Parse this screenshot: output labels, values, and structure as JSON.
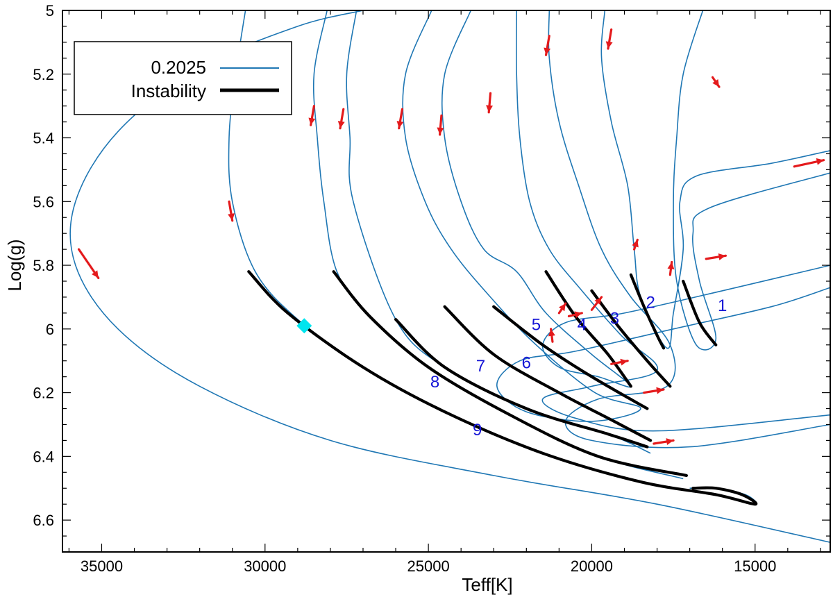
{
  "chart_data": {
    "type": "line",
    "title": "",
    "xlabel": "Teff[K]",
    "ylabel": "Log(g)",
    "xlim": [
      36200,
      12700
    ],
    "ylim": [
      5.0,
      6.7
    ],
    "x_inverted": true,
    "y_inverted": true,
    "x_ticks": [
      35000,
      30000,
      25000,
      20000,
      15000
    ],
    "x_tick_labels": [
      "35000",
      "30000",
      "25000",
      "20000",
      "15000"
    ],
    "y_ticks": [
      5.0,
      5.2,
      5.4,
      5.6,
      5.8,
      6.0,
      6.2,
      6.4,
      6.6
    ],
    "y_tick_labels": [
      "5",
      "5.2",
      "5.4",
      "5.6",
      "5.8",
      "6",
      "6.2",
      "6.4",
      "6.6"
    ],
    "legend": {
      "position": "top-left",
      "entries": [
        {
          "label": "0.2025",
          "style": "thin",
          "color": "#1f77b4"
        },
        {
          "label": "Instability",
          "style": "thick",
          "color": "#000000"
        }
      ]
    },
    "colors": {
      "track": "#1f77b4",
      "instability": "#000000",
      "arrow": "#e41a1c",
      "label": "#1515d6",
      "marker": "#00e5ee"
    },
    "tracks": [
      {
        "name": "outer",
        "points": [
          [
            27000,
            5.0
          ],
          [
            29000,
            5.05
          ],
          [
            32000,
            5.18
          ],
          [
            34500,
            5.38
          ],
          [
            35800,
            5.6
          ],
          [
            35800,
            5.8
          ],
          [
            34500,
            6.0
          ],
          [
            32000,
            6.18
          ],
          [
            28000,
            6.35
          ],
          [
            23000,
            6.46
          ],
          [
            18000,
            6.55
          ],
          [
            12700,
            6.67
          ]
        ]
      },
      {
        "name": "t9",
        "points": [
          [
            30600,
            5.0
          ],
          [
            30900,
            5.2
          ],
          [
            31100,
            5.4
          ],
          [
            31000,
            5.6
          ],
          [
            30300,
            5.82
          ],
          [
            29000,
            5.97
          ],
          [
            27000,
            6.12
          ],
          [
            24500,
            6.26
          ],
          [
            21500,
            6.39
          ],
          [
            18500,
            6.48
          ],
          [
            16200,
            6.52
          ],
          [
            15000,
            6.55
          ],
          [
            15300,
            6.52
          ],
          [
            16200,
            6.5
          ],
          [
            17000,
            6.5
          ]
        ]
      },
      {
        "name": "t8",
        "points": [
          [
            28100,
            5.0
          ],
          [
            28500,
            5.2
          ],
          [
            28400,
            5.4
          ],
          [
            28200,
            5.6
          ],
          [
            27800,
            5.82
          ],
          [
            26800,
            5.96
          ],
          [
            25000,
            6.12
          ],
          [
            22500,
            6.27
          ],
          [
            19800,
            6.4
          ],
          [
            17200,
            6.47
          ]
        ]
      },
      {
        "name": "t7",
        "points": [
          [
            27200,
            5.0
          ],
          [
            27500,
            5.2
          ],
          [
            27400,
            5.4
          ],
          [
            27300,
            5.6
          ],
          [
            26000,
            5.97
          ],
          [
            24500,
            6.12
          ],
          [
            22000,
            6.25
          ],
          [
            19500,
            6.33
          ],
          [
            18200,
            6.39
          ]
        ]
      },
      {
        "name": "t6",
        "points": [
          [
            24900,
            5.0
          ],
          [
            25700,
            5.2
          ],
          [
            25700,
            5.4
          ],
          [
            25100,
            5.6
          ],
          [
            24300,
            5.75
          ],
          [
            23100,
            5.9
          ],
          [
            21700,
            6.05
          ],
          [
            19900,
            6.2
          ],
          [
            18500,
            6.25
          ],
          [
            20000,
            6.29
          ],
          [
            22000,
            6.26
          ],
          [
            22900,
            6.18
          ],
          [
            22200,
            6.1
          ],
          [
            20500,
            6.07
          ],
          [
            17500,
            6.0
          ],
          [
            14500,
            5.93
          ],
          [
            12700,
            5.87
          ]
        ]
      },
      {
        "name": "t5",
        "points": [
          [
            23700,
            5.0
          ],
          [
            24500,
            5.2
          ],
          [
            24500,
            5.4
          ],
          [
            24000,
            5.6
          ],
          [
            23300,
            5.75
          ],
          [
            22300,
            5.82
          ],
          [
            21400,
            5.95
          ],
          [
            20000,
            6.08
          ],
          [
            18800,
            6.18
          ],
          [
            19800,
            6.15
          ],
          [
            21000,
            6.12
          ],
          [
            21500,
            6.05
          ],
          [
            20800,
            5.98
          ],
          [
            19000,
            5.95
          ],
          [
            16000,
            5.88
          ],
          [
            12700,
            5.8
          ]
        ]
      },
      {
        "name": "t4",
        "points": [
          [
            22300,
            5.0
          ],
          [
            22300,
            5.2
          ],
          [
            22200,
            5.4
          ],
          [
            21900,
            5.6
          ],
          [
            21300,
            5.75
          ],
          [
            20300,
            5.88
          ],
          [
            19100,
            6.02
          ],
          [
            18000,
            6.13
          ],
          [
            20000,
            6.18
          ],
          [
            21500,
            6.22
          ],
          [
            20500,
            6.28
          ],
          [
            18000,
            6.32
          ],
          [
            12700,
            6.27
          ]
        ]
      },
      {
        "name": "t3",
        "points": [
          [
            21300,
            5.0
          ],
          [
            21300,
            5.15
          ],
          [
            21000,
            5.35
          ],
          [
            20400,
            5.55
          ],
          [
            19700,
            5.75
          ],
          [
            18800,
            5.9
          ],
          [
            17600,
            6.05
          ],
          [
            17700,
            6.18
          ],
          [
            19800,
            6.22
          ],
          [
            20800,
            6.29
          ],
          [
            20000,
            6.35
          ],
          [
            17000,
            6.37
          ],
          [
            12700,
            6.3
          ]
        ]
      },
      {
        "name": "t2",
        "points": [
          [
            19600,
            5.0
          ],
          [
            19700,
            5.15
          ],
          [
            19400,
            5.35
          ],
          [
            18900,
            5.55
          ],
          [
            18700,
            5.75
          ],
          [
            18500,
            5.9
          ],
          [
            17700,
            6.06
          ],
          [
            17500,
            5.95
          ],
          [
            17200,
            5.75
          ],
          [
            17300,
            5.6
          ],
          [
            16800,
            5.52
          ],
          [
            14500,
            5.48
          ],
          [
            12700,
            5.44
          ]
        ]
      },
      {
        "name": "t1",
        "points": [
          [
            16600,
            5.0
          ],
          [
            17200,
            5.2
          ],
          [
            17400,
            5.4
          ],
          [
            17500,
            5.6
          ],
          [
            17400,
            5.85
          ],
          [
            16800,
            6.05
          ],
          [
            16200,
            6.03
          ],
          [
            16700,
            5.85
          ],
          [
            16900,
            5.7
          ],
          [
            16400,
            5.62
          ],
          [
            12700,
            5.51
          ]
        ]
      }
    ],
    "instability": [
      {
        "name": "i9",
        "points": [
          [
            30500,
            5.82
          ],
          [
            29300,
            5.95
          ],
          [
            27000,
            6.12
          ],
          [
            24500,
            6.26
          ],
          [
            21500,
            6.39
          ],
          [
            18500,
            6.48
          ],
          [
            16200,
            6.52
          ],
          [
            15000,
            6.55
          ],
          [
            15400,
            6.52
          ],
          [
            16200,
            6.5
          ],
          [
            16900,
            6.5
          ]
        ]
      },
      {
        "name": "i8",
        "points": [
          [
            27900,
            5.82
          ],
          [
            26800,
            5.96
          ],
          [
            25000,
            6.12
          ],
          [
            22500,
            6.27
          ],
          [
            19800,
            6.4
          ],
          [
            17100,
            6.46
          ]
        ]
      },
      {
        "name": "i7",
        "points": [
          [
            26000,
            5.97
          ],
          [
            24500,
            6.12
          ],
          [
            22000,
            6.25
          ],
          [
            19500,
            6.33
          ],
          [
            18300,
            6.37
          ]
        ]
      },
      {
        "name": "i6",
        "points": [
          [
            24500,
            5.93
          ],
          [
            23000,
            6.08
          ],
          [
            21000,
            6.2
          ],
          [
            19500,
            6.28
          ],
          [
            18200,
            6.35
          ]
        ]
      },
      {
        "name": "i5",
        "points": [
          [
            23000,
            5.93
          ],
          [
            21500,
            6.05
          ],
          [
            20000,
            6.15
          ],
          [
            18300,
            6.25
          ]
        ]
      },
      {
        "name": "i4",
        "points": [
          [
            21400,
            5.82
          ],
          [
            20500,
            5.96
          ],
          [
            19500,
            6.08
          ],
          [
            18800,
            6.18
          ]
        ]
      },
      {
        "name": "i3",
        "points": [
          [
            20000,
            5.88
          ],
          [
            19200,
            5.99
          ],
          [
            18300,
            6.1
          ],
          [
            17600,
            6.18
          ]
        ]
      },
      {
        "name": "i2",
        "points": [
          [
            18800,
            5.83
          ],
          [
            18400,
            5.93
          ],
          [
            18000,
            6.02
          ],
          [
            17800,
            6.06
          ]
        ]
      },
      {
        "name": "i1",
        "points": [
          [
            17200,
            5.85
          ],
          [
            16700,
            5.98
          ],
          [
            16200,
            6.05
          ]
        ]
      }
    ],
    "arrows": [
      [
        [
          35700,
          5.75
        ],
        [
          35100,
          5.84
        ]
      ],
      [
        [
          31100,
          5.6
        ],
        [
          31000,
          5.66
        ]
      ],
      [
        [
          28500,
          5.3
        ],
        [
          28600,
          5.36
        ]
      ],
      [
        [
          27600,
          5.31
        ],
        [
          27700,
          5.37
        ]
      ],
      [
        [
          25800,
          5.31
        ],
        [
          25900,
          5.37
        ]
      ],
      [
        [
          24600,
          5.33
        ],
        [
          24650,
          5.39
        ]
      ],
      [
        [
          23100,
          5.26
        ],
        [
          23150,
          5.32
        ]
      ],
      [
        [
          21300,
          5.08
        ],
        [
          21400,
          5.14
        ]
      ],
      [
        [
          19400,
          5.06
        ],
        [
          19500,
          5.12
        ]
      ],
      [
        [
          16300,
          5.21
        ],
        [
          16100,
          5.24
        ]
      ],
      [
        [
          13800,
          5.49
        ],
        [
          12900,
          5.47
        ]
      ],
      [
        [
          16500,
          5.78
        ],
        [
          15900,
          5.77
        ]
      ],
      [
        [
          17600,
          5.83
        ],
        [
          17550,
          5.79
        ]
      ],
      [
        [
          18700,
          5.75
        ],
        [
          18600,
          5.72
        ]
      ],
      [
        [
          20000,
          5.94
        ],
        [
          19700,
          5.9
        ]
      ],
      [
        [
          20700,
          5.96
        ],
        [
          20300,
          5.95
        ]
      ],
      [
        [
          21200,
          6.04
        ],
        [
          21250,
          6.0
        ]
      ],
      [
        [
          19400,
          6.11
        ],
        [
          18900,
          6.1
        ]
      ],
      [
        [
          18400,
          6.2
        ],
        [
          17800,
          6.19
        ]
      ],
      [
        [
          18100,
          6.36
        ],
        [
          17500,
          6.35
        ]
      ],
      [
        [
          21000,
          5.95
        ],
        [
          20800,
          5.92
        ]
      ]
    ],
    "labels": [
      {
        "text": "1",
        "x": 16000,
        "y": 5.93
      },
      {
        "text": "2",
        "x": 18200,
        "y": 5.92
      },
      {
        "text": "3",
        "x": 19300,
        "y": 5.97
      },
      {
        "text": "4",
        "x": 20300,
        "y": 5.99
      },
      {
        "text": "5",
        "x": 21700,
        "y": 5.99
      },
      {
        "text": "6",
        "x": 22000,
        "y": 6.11
      },
      {
        "text": "7",
        "x": 23400,
        "y": 6.12
      },
      {
        "text": "8",
        "x": 24800,
        "y": 6.17
      },
      {
        "text": "9",
        "x": 23500,
        "y": 6.32
      }
    ],
    "marker": {
      "name": "cyan-diamond",
      "x": 28800,
      "y": 5.99
    }
  }
}
